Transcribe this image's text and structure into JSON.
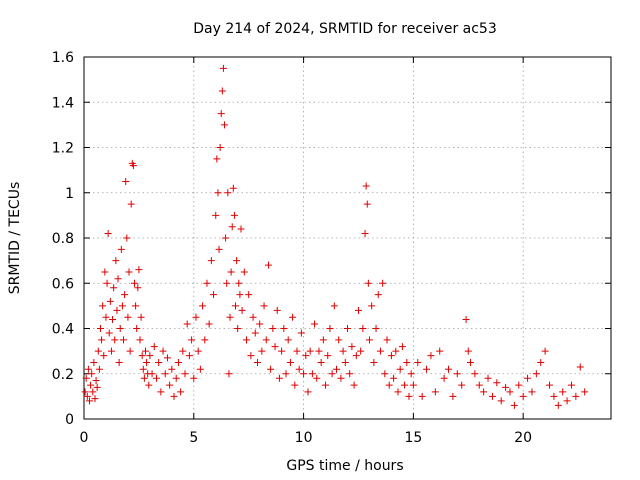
{
  "chart_data": {
    "type": "scatter",
    "title": "Day 214 of 2024, SRMTID for receiver ac53",
    "xlabel": "GPS time / hours",
    "ylabel": "SRMTID / TECUs",
    "xlim": [
      0,
      24
    ],
    "ylim": [
      0,
      1.6
    ],
    "xticks": [
      0,
      5,
      10,
      15,
      20
    ],
    "yticks": [
      0,
      0.2,
      0.4,
      0.6,
      0.8,
      1,
      1.2,
      1.4,
      1.6
    ],
    "xtick_labels": [
      "0",
      "5",
      "10",
      "15",
      "20"
    ],
    "ytick_labels": [
      "0",
      "0.2",
      "0.4",
      "0.6",
      "0.8",
      "1",
      "1.2",
      "1.4",
      "1.6"
    ],
    "grid": true,
    "marker": "+",
    "color": "#e00000",
    "series": [
      {
        "name": "SRMTID",
        "points": [
          [
            0.05,
            0.12
          ],
          [
            0.1,
            0.18
          ],
          [
            0.15,
            0.1
          ],
          [
            0.2,
            0.22
          ],
          [
            0.25,
            0.08
          ],
          [
            0.3,
            0.15
          ],
          [
            0.35,
            0.2
          ],
          [
            0.4,
            0.12
          ],
          [
            0.45,
            0.25
          ],
          [
            0.5,
            0.09
          ],
          [
            0.55,
            0.17
          ],
          [
            0.6,
            0.14
          ],
          [
            0.65,
            0.3
          ],
          [
            0.7,
            0.22
          ],
          [
            0.75,
            0.4
          ],
          [
            0.8,
            0.35
          ],
          [
            0.85,
            0.5
          ],
          [
            0.9,
            0.28
          ],
          [
            0.95,
            0.65
          ],
          [
            1.0,
            0.45
          ],
          [
            1.05,
            0.6
          ],
          [
            1.1,
            0.82
          ],
          [
            1.15,
            0.38
          ],
          [
            1.2,
            0.52
          ],
          [
            1.25,
            0.3
          ],
          [
            1.3,
            0.44
          ],
          [
            1.35,
            0.58
          ],
          [
            1.4,
            0.35
          ],
          [
            1.45,
            0.7
          ],
          [
            1.5,
            0.48
          ],
          [
            1.55,
            0.62
          ],
          [
            1.6,
            0.25
          ],
          [
            1.65,
            0.4
          ],
          [
            1.7,
            0.75
          ],
          [
            1.75,
            0.5
          ],
          [
            1.8,
            0.35
          ],
          [
            1.85,
            0.55
          ],
          [
            1.9,
            1.05
          ],
          [
            1.95,
            0.8
          ],
          [
            2.0,
            0.45
          ],
          [
            2.05,
            0.65
          ],
          [
            2.1,
            0.3
          ],
          [
            2.15,
            0.95
          ],
          [
            2.2,
            1.13
          ],
          [
            2.25,
            1.12
          ],
          [
            2.3,
            0.6
          ],
          [
            2.35,
            0.5
          ],
          [
            2.4,
            0.4
          ],
          [
            2.45,
            0.58
          ],
          [
            2.5,
            0.66
          ],
          [
            2.55,
            0.35
          ],
          [
            2.6,
            0.45
          ],
          [
            2.65,
            0.28
          ],
          [
            2.7,
            0.22
          ],
          [
            2.75,
            0.18
          ],
          [
            2.8,
            0.3
          ],
          [
            2.85,
            0.25
          ],
          [
            2.9,
            0.2
          ],
          [
            2.95,
            0.15
          ],
          [
            3.0,
            0.28
          ],
          [
            3.1,
            0.2
          ],
          [
            3.2,
            0.32
          ],
          [
            3.3,
            0.18
          ],
          [
            3.4,
            0.25
          ],
          [
            3.5,
            0.12
          ],
          [
            3.6,
            0.3
          ],
          [
            3.7,
            0.2
          ],
          [
            3.8,
            0.27
          ],
          [
            3.9,
            0.15
          ],
          [
            4.0,
            0.22
          ],
          [
            4.1,
            0.1
          ],
          [
            4.2,
            0.18
          ],
          [
            4.3,
            0.25
          ],
          [
            4.4,
            0.12
          ],
          [
            4.5,
            0.3
          ],
          [
            4.6,
            0.2
          ],
          [
            4.7,
            0.42
          ],
          [
            4.8,
            0.28
          ],
          [
            4.9,
            0.35
          ],
          [
            5.0,
            0.18
          ],
          [
            5.1,
            0.45
          ],
          [
            5.2,
            0.3
          ],
          [
            5.3,
            0.22
          ],
          [
            5.4,
            0.5
          ],
          [
            5.5,
            0.35
          ],
          [
            5.6,
            0.6
          ],
          [
            5.7,
            0.42
          ],
          [
            5.8,
            0.7
          ],
          [
            5.9,
            0.55
          ],
          [
            6.0,
            0.9
          ],
          [
            6.05,
            1.15
          ],
          [
            6.1,
            1.0
          ],
          [
            6.15,
            0.75
          ],
          [
            6.2,
            1.2
          ],
          [
            6.25,
            1.35
          ],
          [
            6.3,
            1.45
          ],
          [
            6.35,
            1.55
          ],
          [
            6.4,
            1.3
          ],
          [
            6.45,
            0.8
          ],
          [
            6.5,
            0.6
          ],
          [
            6.55,
            1.0
          ],
          [
            6.6,
            0.2
          ],
          [
            6.65,
            0.45
          ],
          [
            6.7,
            0.65
          ],
          [
            6.75,
            0.85
          ],
          [
            6.8,
            1.02
          ],
          [
            6.85,
            0.9
          ],
          [
            6.9,
            0.5
          ],
          [
            6.95,
            0.7
          ],
          [
            7.0,
            0.4
          ],
          [
            7.05,
            0.6
          ],
          [
            7.1,
            0.55
          ],
          [
            7.15,
            0.84
          ],
          [
            7.2,
            0.48
          ],
          [
            7.3,
            0.65
          ],
          [
            7.4,
            0.35
          ],
          [
            7.5,
            0.55
          ],
          [
            7.6,
            0.28
          ],
          [
            7.7,
            0.45
          ],
          [
            7.8,
            0.38
          ],
          [
            7.9,
            0.25
          ],
          [
            8.0,
            0.42
          ],
          [
            8.1,
            0.3
          ],
          [
            8.2,
            0.5
          ],
          [
            8.3,
            0.35
          ],
          [
            8.4,
            0.68
          ],
          [
            8.5,
            0.22
          ],
          [
            8.6,
            0.4
          ],
          [
            8.7,
            0.32
          ],
          [
            8.8,
            0.48
          ],
          [
            8.9,
            0.18
          ],
          [
            9.0,
            0.3
          ],
          [
            9.1,
            0.4
          ],
          [
            9.2,
            0.2
          ],
          [
            9.3,
            0.35
          ],
          [
            9.4,
            0.25
          ],
          [
            9.5,
            0.45
          ],
          [
            9.6,
            0.15
          ],
          [
            9.7,
            0.3
          ],
          [
            9.8,
            0.22
          ],
          [
            9.9,
            0.38
          ],
          [
            10.0,
            0.2
          ],
          [
            10.1,
            0.28
          ],
          [
            10.2,
            0.12
          ],
          [
            10.3,
            0.3
          ],
          [
            10.4,
            0.2
          ],
          [
            10.5,
            0.42
          ],
          [
            10.6,
            0.18
          ],
          [
            10.7,
            0.3
          ],
          [
            10.8,
            0.25
          ],
          [
            10.9,
            0.35
          ],
          [
            11.0,
            0.15
          ],
          [
            11.1,
            0.28
          ],
          [
            11.2,
            0.4
          ],
          [
            11.3,
            0.2
          ],
          [
            11.4,
            0.5
          ],
          [
            11.5,
            0.22
          ],
          [
            11.6,
            0.35
          ],
          [
            11.7,
            0.18
          ],
          [
            11.8,
            0.3
          ],
          [
            11.9,
            0.25
          ],
          [
            12.0,
            0.4
          ],
          [
            12.1,
            0.2
          ],
          [
            12.2,
            0.32
          ],
          [
            12.3,
            0.15
          ],
          [
            12.4,
            0.28
          ],
          [
            12.5,
            0.48
          ],
          [
            12.6,
            0.3
          ],
          [
            12.7,
            0.4
          ],
          [
            12.8,
            0.82
          ],
          [
            12.85,
            1.03
          ],
          [
            12.9,
            0.95
          ],
          [
            12.95,
            0.6
          ],
          [
            13.0,
            0.35
          ],
          [
            13.1,
            0.5
          ],
          [
            13.2,
            0.25
          ],
          [
            13.3,
            0.4
          ],
          [
            13.4,
            0.55
          ],
          [
            13.5,
            0.3
          ],
          [
            13.6,
            0.6
          ],
          [
            13.7,
            0.2
          ],
          [
            13.8,
            0.35
          ],
          [
            13.9,
            0.15
          ],
          [
            14.0,
            0.28
          ],
          [
            14.1,
            0.18
          ],
          [
            14.2,
            0.3
          ],
          [
            14.3,
            0.12
          ],
          [
            14.4,
            0.22
          ],
          [
            14.5,
            0.32
          ],
          [
            14.6,
            0.15
          ],
          [
            14.7,
            0.25
          ],
          [
            14.8,
            0.1
          ],
          [
            14.9,
            0.2
          ],
          [
            15.0,
            0.15
          ],
          [
            15.2,
            0.25
          ],
          [
            15.4,
            0.1
          ],
          [
            15.6,
            0.22
          ],
          [
            15.8,
            0.28
          ],
          [
            16.0,
            0.12
          ],
          [
            16.2,
            0.3
          ],
          [
            16.4,
            0.18
          ],
          [
            16.6,
            0.22
          ],
          [
            16.8,
            0.1
          ],
          [
            17.0,
            0.2
          ],
          [
            17.2,
            0.15
          ],
          [
            17.4,
            0.44
          ],
          [
            17.5,
            0.3
          ],
          [
            17.6,
            0.25
          ],
          [
            17.8,
            0.2
          ],
          [
            18.0,
            0.15
          ],
          [
            18.2,
            0.12
          ],
          [
            18.4,
            0.18
          ],
          [
            18.6,
            0.1
          ],
          [
            18.8,
            0.16
          ],
          [
            19.0,
            0.08
          ],
          [
            19.2,
            0.14
          ],
          [
            19.4,
            0.12
          ],
          [
            19.6,
            0.06
          ],
          [
            19.8,
            0.15
          ],
          [
            20.0,
            0.1
          ],
          [
            20.2,
            0.18
          ],
          [
            20.4,
            0.12
          ],
          [
            20.6,
            0.2
          ],
          [
            20.8,
            0.25
          ],
          [
            21.0,
            0.3
          ],
          [
            21.2,
            0.15
          ],
          [
            21.4,
            0.1
          ],
          [
            21.6,
            0.06
          ],
          [
            21.8,
            0.12
          ],
          [
            22.0,
            0.08
          ],
          [
            22.2,
            0.15
          ],
          [
            22.4,
            0.1
          ],
          [
            22.6,
            0.23
          ],
          [
            22.8,
            0.12
          ]
        ]
      }
    ]
  }
}
